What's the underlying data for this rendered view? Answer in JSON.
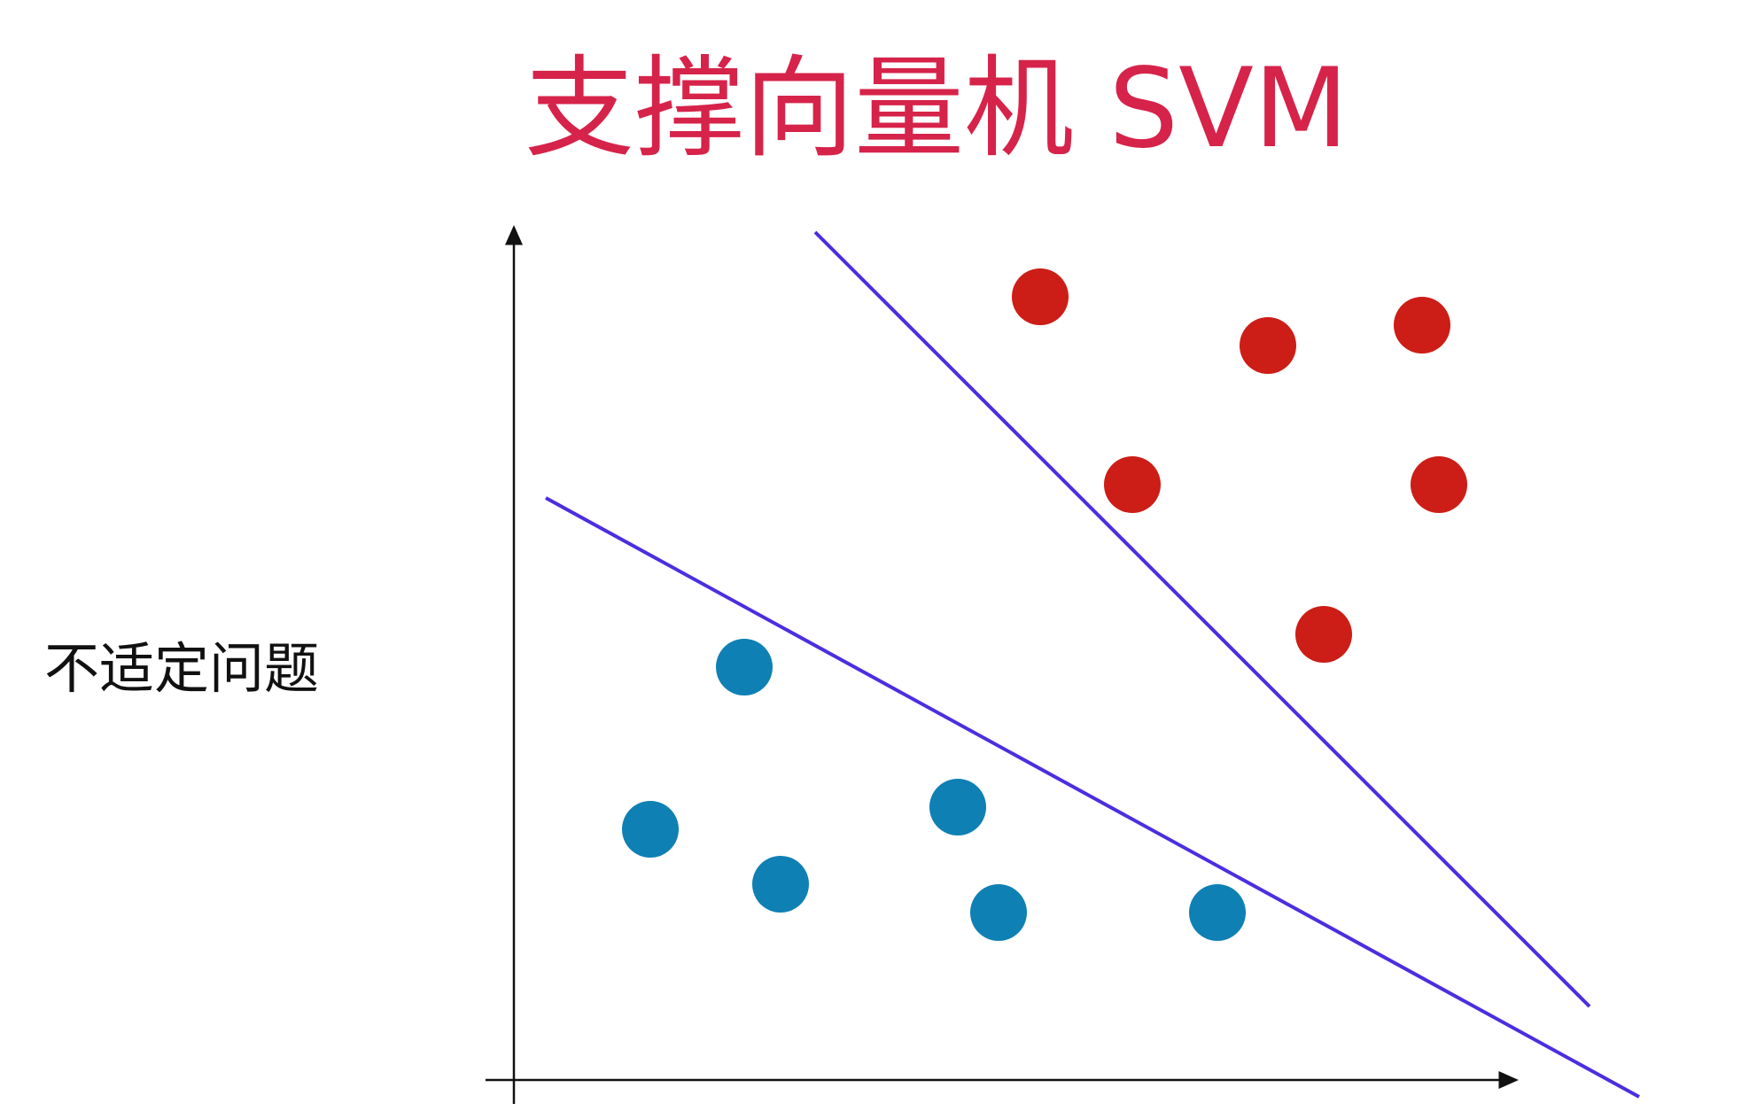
{
  "title": "支撑向量机 SVM",
  "side_label": "不适定问题"
}
